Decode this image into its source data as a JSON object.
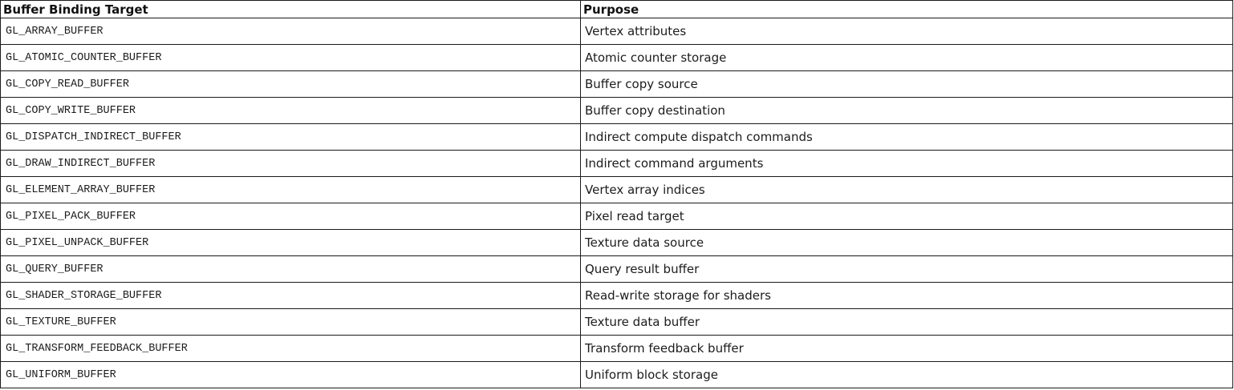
{
  "table": {
    "headers": [
      "Buffer Binding Target",
      "Purpose"
    ],
    "rows": [
      {
        "target": "GL_ARRAY_BUFFER",
        "purpose": "Vertex attributes"
      },
      {
        "target": "GL_ATOMIC_COUNTER_BUFFER",
        "purpose": "Atomic counter storage"
      },
      {
        "target": "GL_COPY_READ_BUFFER",
        "purpose": "Buffer copy source"
      },
      {
        "target": "GL_COPY_WRITE_BUFFER",
        "purpose": "Buffer copy destination"
      },
      {
        "target": "GL_DISPATCH_INDIRECT_BUFFER",
        "purpose": "Indirect compute dispatch commands"
      },
      {
        "target": "GL_DRAW_INDIRECT_BUFFER",
        "purpose": "Indirect command arguments"
      },
      {
        "target": "GL_ELEMENT_ARRAY_BUFFER",
        "purpose": "Vertex array indices"
      },
      {
        "target": "GL_PIXEL_PACK_BUFFER",
        "purpose": "Pixel read target"
      },
      {
        "target": "GL_PIXEL_UNPACK_BUFFER",
        "purpose": "Texture data source"
      },
      {
        "target": "GL_QUERY_BUFFER",
        "purpose": "Query result buffer"
      },
      {
        "target": "GL_SHADER_STORAGE_BUFFER",
        "purpose": "Read-write storage for shaders"
      },
      {
        "target": "GL_TEXTURE_BUFFER",
        "purpose": "Texture data buffer"
      },
      {
        "target": "GL_TRANSFORM_FEEDBACK_BUFFER",
        "purpose": "Transform feedback buffer"
      },
      {
        "target": "GL_UNIFORM_BUFFER",
        "purpose": "Uniform block storage"
      }
    ]
  }
}
